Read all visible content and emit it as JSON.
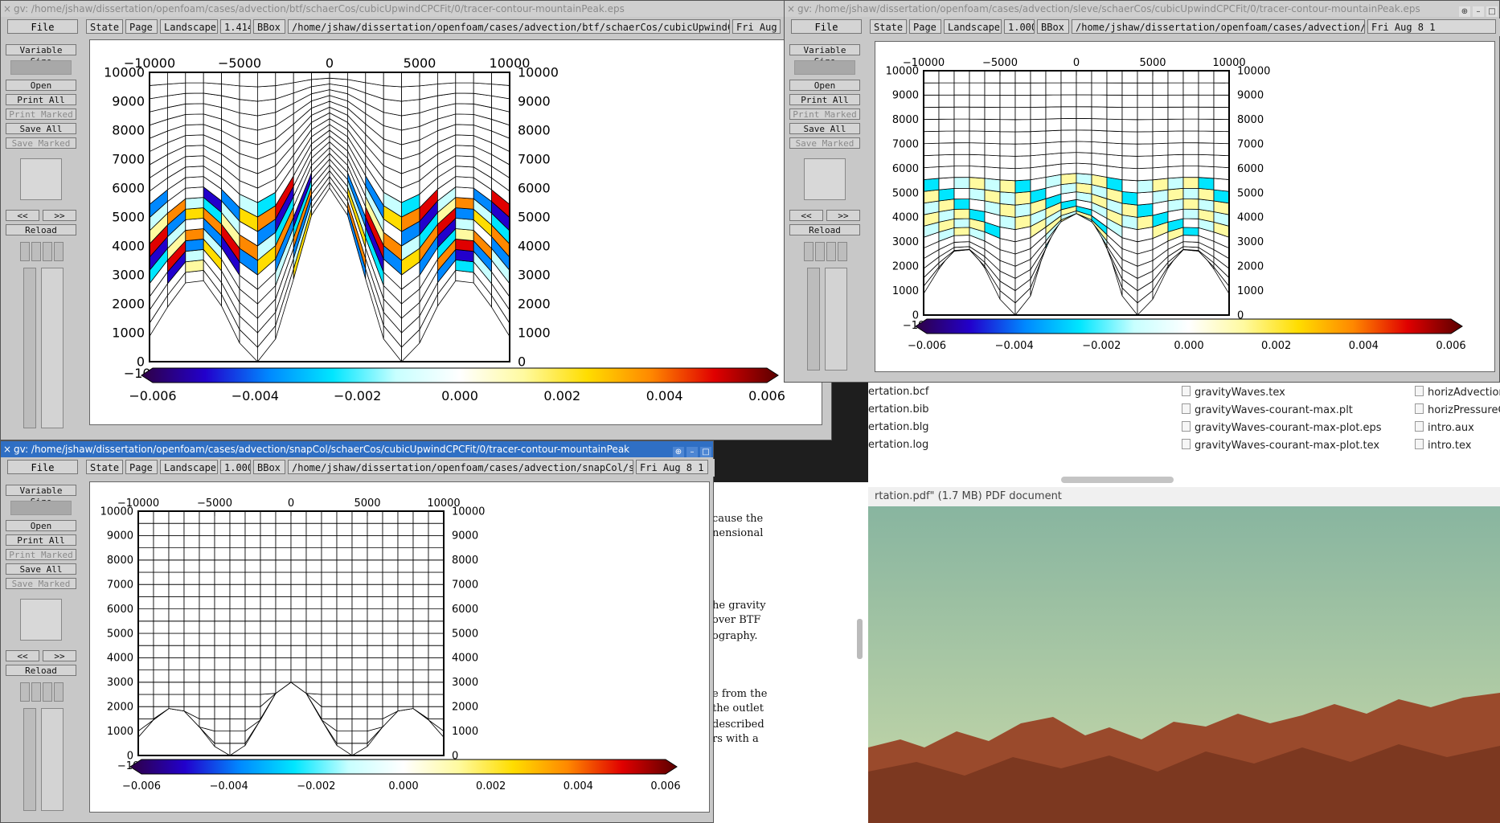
{
  "ticks_x": [
    "−10000",
    "−5000",
    "0",
    "5000",
    "10000"
  ],
  "ticks_y": [
    "0",
    "1000",
    "2000",
    "3000",
    "4000",
    "5000",
    "6000",
    "7000",
    "8000",
    "9000",
    "10000"
  ],
  "colorbar_labels": [
    "−0.006",
    "−0.004",
    "−0.002",
    "0.000",
    "0.002",
    "0.004",
    "0.006"
  ],
  "gv_common": {
    "file": "File",
    "state": "State",
    "page": "Page",
    "orientation": "Landscape",
    "bbox": "BBox",
    "variable_size": "Variable Size",
    "open": "Open",
    "print_all": "Print All",
    "print_marked": "Print Marked",
    "save_all": "Save All",
    "save_marked": "Save Marked",
    "prev": "<<",
    "next": ">>",
    "reload": "Reload"
  },
  "windows": [
    {
      "title": "gv: /home/jshaw/dissertation/openfoam/cases/advection/btf/schaerCos/cubicUpwindCPCFit/0/tracer-contour-mountainPeak.eps",
      "scale": "1.414",
      "path": "/home/jshaw/dissertation/openfoam/cases/advection/btf/schaerCos/cubicUpwindCPCFit",
      "date": "Fri Aug"
    },
    {
      "title": "gv: /home/jshaw/dissertation/openfoam/cases/advection/sleve/schaerCos/cubicUpwindCPCFit/0/tracer-contour-mountainPeak.eps",
      "scale": "1.000",
      "path": "/home/jshaw/dissertation/openfoam/cases/advection/sleve/schaerCos",
      "date": "Fri Aug  8 1"
    },
    {
      "title": "gv: /home/jshaw/dissertation/openfoam/cases/advection/snapCol/schaerCos/cubicUpwindCPCFit/0/tracer-contour-mountainPeak",
      "scale": "1.000",
      "path": "/home/jshaw/dissertation/openfoam/cases/advection/snapCol/sch",
      "date": "Fri Aug  8 1"
    }
  ],
  "file_manager": {
    "col1": [
      "ertation.bcf",
      "ertation.bib",
      "ertation.blg",
      "ertation.log"
    ],
    "col2": [
      "gravityWaves.tex",
      "gravityWaves-courant-max.plt",
      "gravityWaves-courant-max-plot.eps",
      "gravityWaves-courant-max-plot.tex"
    ],
    "col3": [
      "horizAdvection",
      "horizPressureG",
      "intro.aux",
      "intro.tex"
    ],
    "status": "rtation.pdf\" (1.7 MB) PDF document"
  },
  "doc_text": [
    "cause the",
    "nensional",
    "he gravity",
    "over BTF",
    "ography.",
    "e from the",
    "the outlet",
    "described",
    "rs with a"
  ]
}
